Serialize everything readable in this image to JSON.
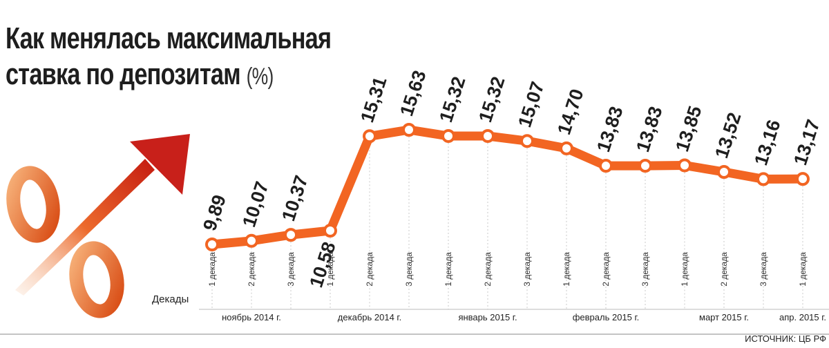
{
  "title": {
    "line1": "Как менялась максимальная",
    "line2": "ставка по депозитам",
    "unit": "(%)"
  },
  "row_label": "Декады",
  "source": "ИСТОЧНИК: ЦБ РФ",
  "chart_data": {
    "type": "line",
    "title": "Как менялась максимальная ставка по депозитам",
    "ylabel": "%",
    "xlabel": "Декады",
    "x": [
      "1 декада",
      "2 декада",
      "3 декада",
      "1 декада",
      "2 декада",
      "3 декада",
      "1 декада",
      "2 декада",
      "3 декада",
      "1 декада",
      "2 декада",
      "3 декада",
      "1 декада",
      "2 декада",
      "3 декада",
      "1 декада"
    ],
    "values": [
      9.89,
      10.07,
      10.37,
      10.58,
      15.31,
      15.63,
      15.32,
      15.32,
      15.07,
      14.7,
      13.83,
      13.83,
      13.85,
      13.52,
      13.16,
      13.17
    ],
    "value_labels": [
      "9,89",
      "10,07",
      "10,37",
      "10,58",
      "15,31",
      "15,63",
      "15,32",
      "15,32",
      "15,07",
      "14,70",
      "13,83",
      "13,83",
      "13,85",
      "13,52",
      "13,16",
      "13,17"
    ],
    "months": [
      {
        "label": "ноябрь 2014 г.",
        "start": 0,
        "end": 2
      },
      {
        "label": "декабрь 2014 г.",
        "start": 3,
        "end": 5
      },
      {
        "label": "январь 2015 г.",
        "start": 6,
        "end": 8
      },
      {
        "label": "февраль 2015 г.",
        "start": 9,
        "end": 11
      },
      {
        "label": "март 2015 г.",
        "start": 12,
        "end": 14
      },
      {
        "label": "апр. 2015 г.",
        "start": 15,
        "end": 15
      }
    ],
    "ylim": [
      9.5,
      16.0
    ],
    "grid": false,
    "colors": {
      "line": "#f26522",
      "marker_fill": "#ffffff",
      "text": "#1e1e1e"
    }
  }
}
